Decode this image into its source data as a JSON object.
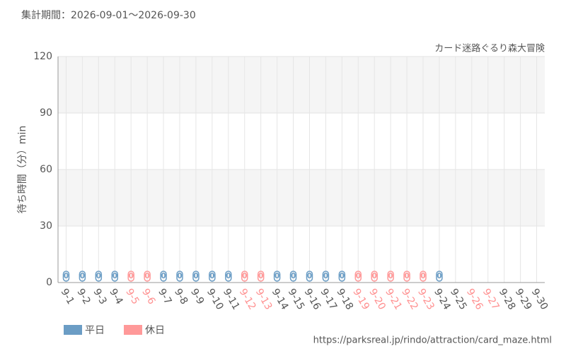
{
  "chart_data": {
    "type": "bar",
    "title": "集計期間：2026-09-01～2026-09-30",
    "subtitle": "カード迷路ぐるり森大冒険",
    "y_label": "待ち時間（分）min",
    "source": "https://parksreal.jp/rindo/attraction/card_maze.html",
    "categories": [
      "9-1",
      "9-2",
      "9-3",
      "9-4",
      "9-5",
      "9-6",
      "9-7",
      "9-8",
      "9-9",
      "9-10",
      "9-11",
      "9-12",
      "9-13",
      "9-14",
      "9-15",
      "9-16",
      "9-17",
      "9-18",
      "9-19",
      "9-20",
      "9-21",
      "9-22",
      "9-23",
      "9-24",
      "9-25",
      "9-26",
      "9-27",
      "9-28",
      "9-29",
      "9-30"
    ],
    "category_colors": [
      "#555555",
      "#555555",
      "#555555",
      "#555555",
      "#ff8f8f",
      "#ff8f8f",
      "#555555",
      "#555555",
      "#555555",
      "#555555",
      "#555555",
      "#ff8f8f",
      "#ff8f8f",
      "#555555",
      "#555555",
      "#555555",
      "#555555",
      "#555555",
      "#ff8f8f",
      "#ff8f8f",
      "#ff8f8f",
      "#ff8f8f",
      "#ff8f8f",
      "#555555",
      "#555555",
      "#ff8f8f",
      "#ff8f8f",
      "#555555",
      "#555555",
      "#555555"
    ],
    "series": [
      {
        "name": "平日",
        "color": "#6b9dc5",
        "values": [
          0,
          0,
          0,
          0,
          null,
          null,
          0,
          0,
          0,
          0,
          0,
          null,
          null,
          0,
          0,
          0,
          0,
          0,
          null,
          null,
          null,
          null,
          null,
          0,
          null,
          null,
          null,
          null,
          null,
          null
        ]
      },
      {
        "name": "休日",
        "color": "#ff9999",
        "values": [
          null,
          null,
          null,
          null,
          0,
          0,
          null,
          null,
          null,
          null,
          null,
          0,
          0,
          null,
          null,
          null,
          null,
          null,
          0,
          0,
          0,
          0,
          0,
          null,
          null,
          null,
          null,
          null,
          null,
          null
        ]
      }
    ],
    "ylim": [
      0,
      120
    ],
    "yticks": [
      0,
      30,
      60,
      90,
      120
    ],
    "grid": true
  }
}
